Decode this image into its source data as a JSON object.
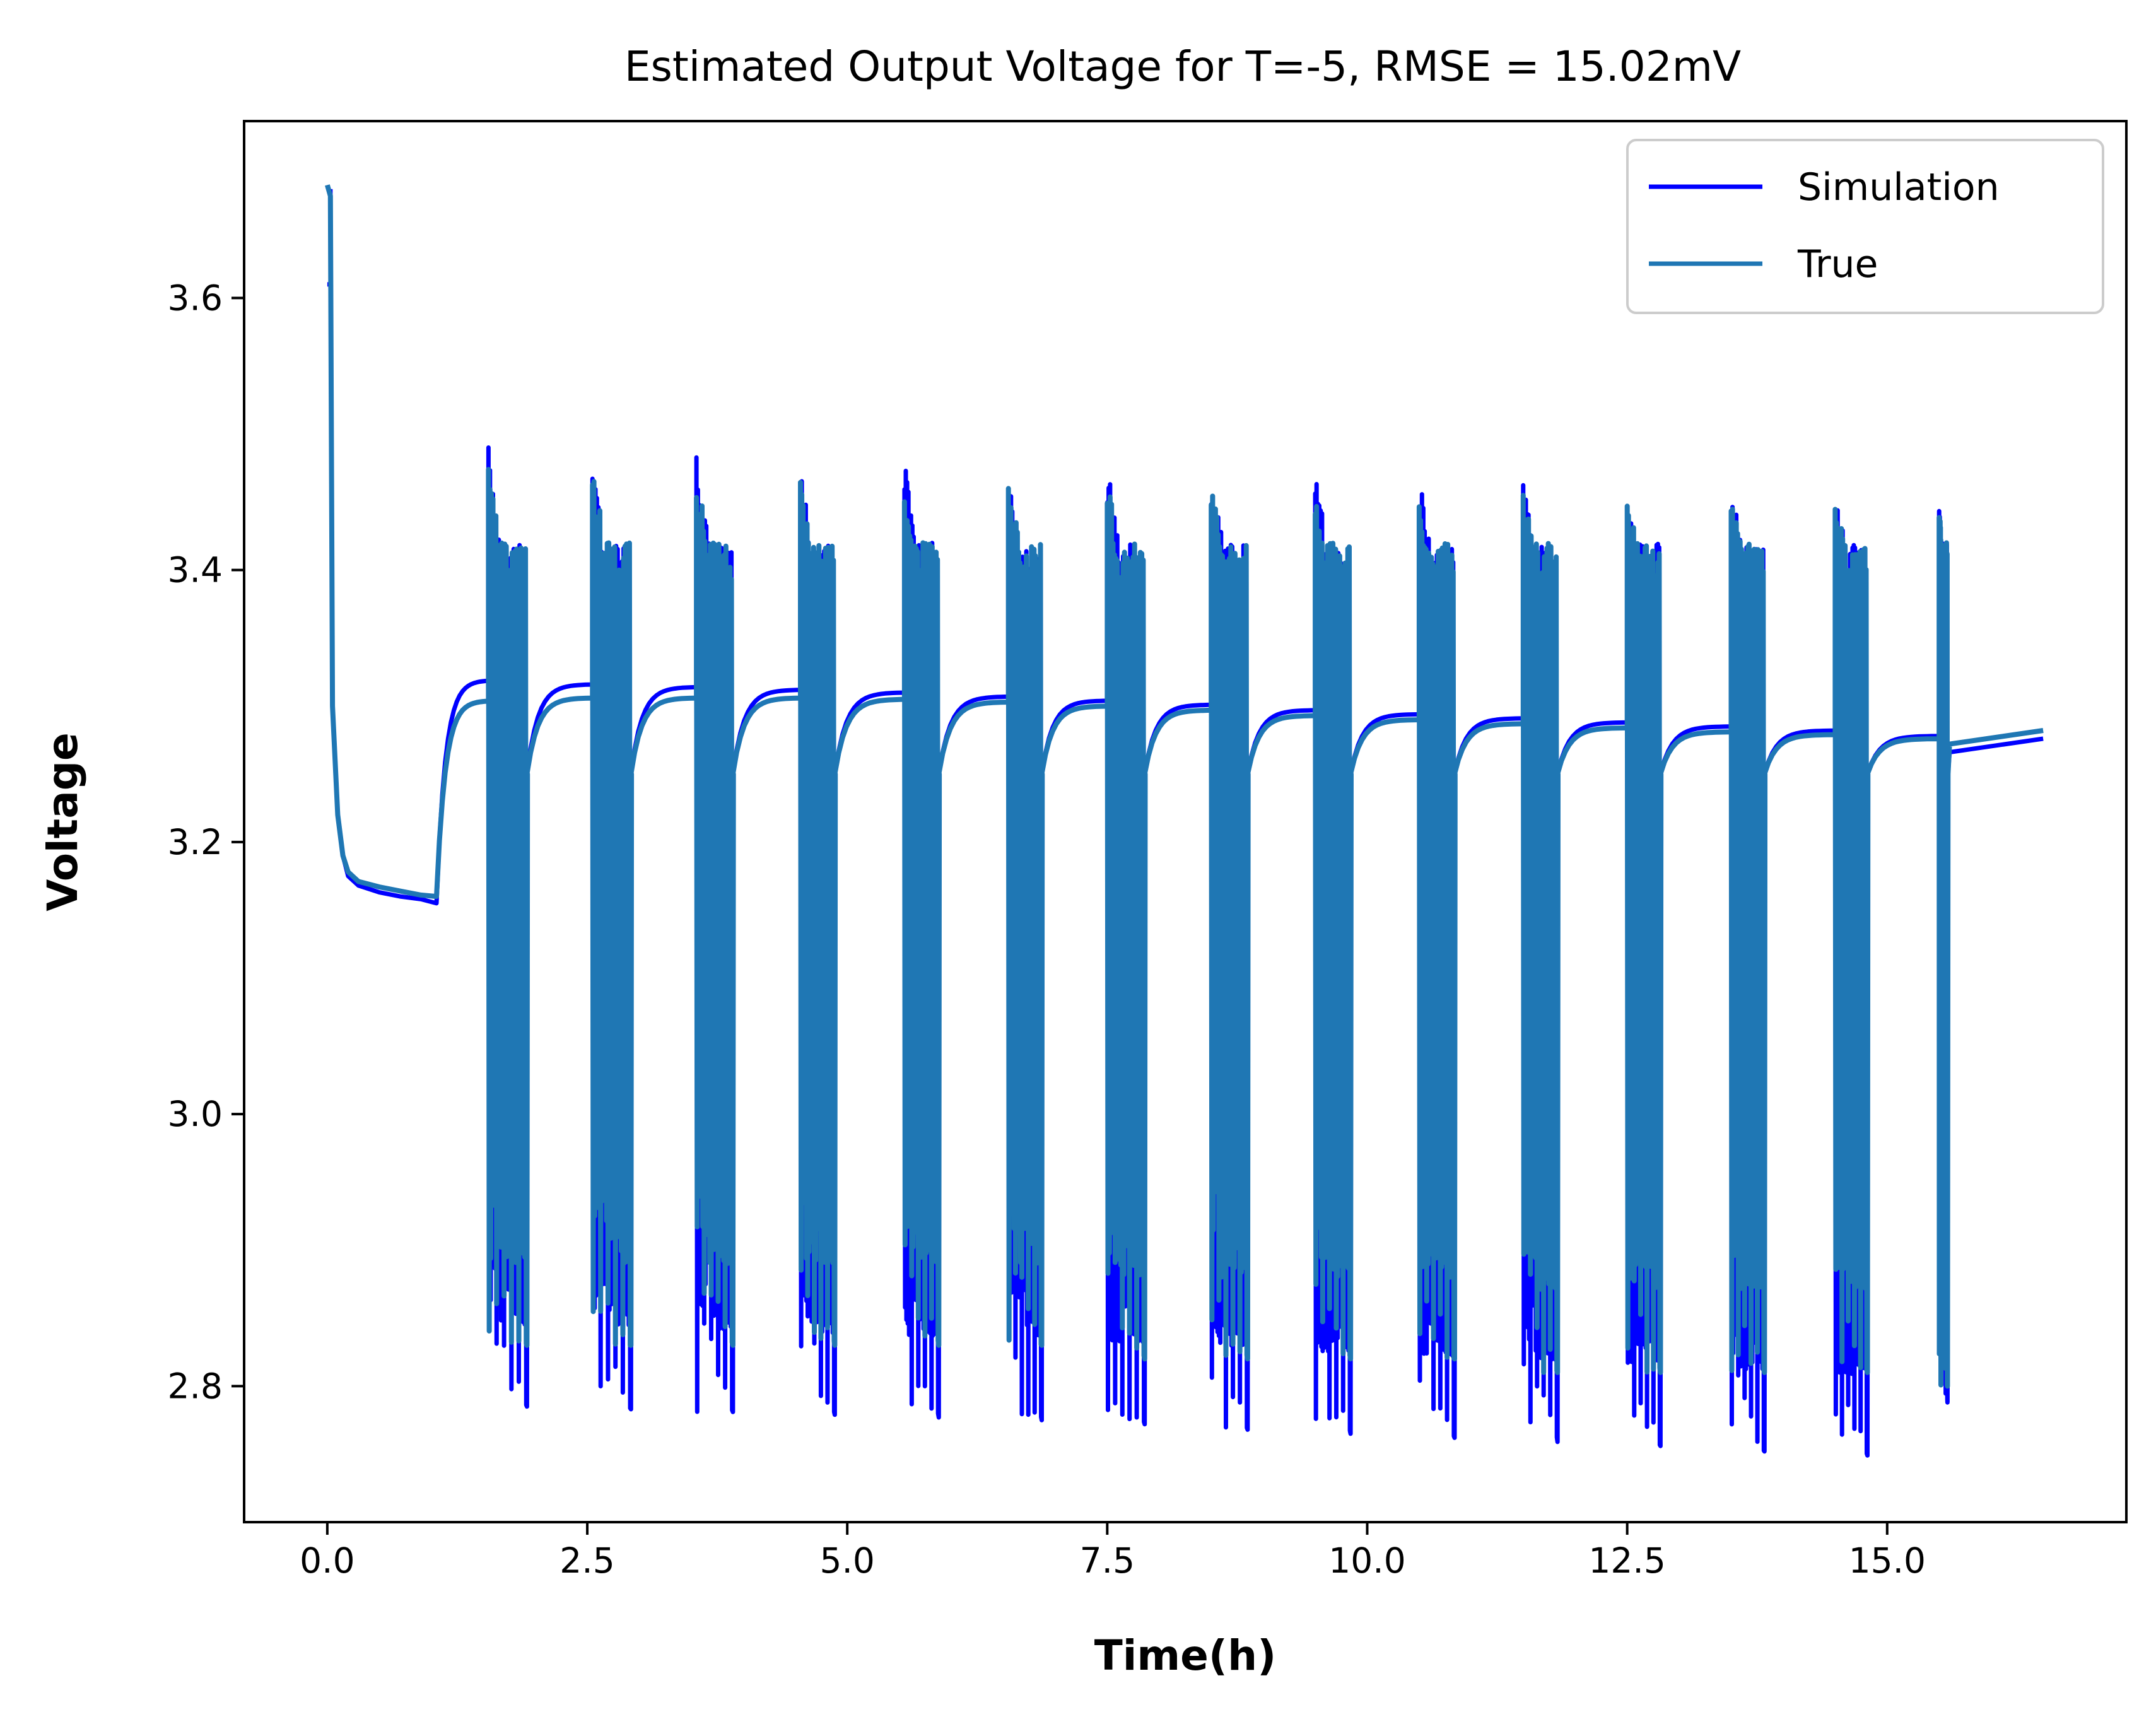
{
  "chart_data": {
    "type": "line",
    "title": "Estimated Output Voltage for T=-5, RMSE = 15.02mV",
    "xlabel": "Time(h)",
    "ylabel": "Voltage",
    "xlim": [
      -0.8,
      17.3
    ],
    "ylim": [
      2.7,
      3.73
    ],
    "xticks": [
      0.0,
      2.5,
      5.0,
      7.5,
      10.0,
      12.5,
      15.0
    ],
    "xtick_labels": [
      "0.0",
      "2.5",
      "5.0",
      "7.5",
      "10.0",
      "12.5",
      "15.0"
    ],
    "yticks": [
      2.8,
      3.0,
      3.2,
      3.4,
      3.6
    ],
    "ytick_labels": [
      "2.8",
      "3.0",
      "3.2",
      "3.4",
      "3.6"
    ],
    "grid": false,
    "legend_position": "top-right",
    "series": [
      {
        "name": "Simulation",
        "color": "#0000ff",
        "initial": {
          "x": [
            0.0,
            0.02,
            0.03
          ],
          "y": [
            3.61,
            3.61,
            3.61
          ]
        },
        "rest_phase": {
          "x": [
            0.03,
            0.05,
            0.1,
            0.15,
            0.2,
            0.3,
            0.5,
            0.7,
            0.9,
            1.05
          ],
          "y": [
            3.68,
            3.3,
            3.22,
            3.19,
            3.175,
            3.168,
            3.163,
            3.16,
            3.158,
            3.155
          ]
        },
        "pulse_start_hours": [
          1.55,
          2.55,
          3.55,
          4.55,
          5.55,
          6.55,
          7.5,
          8.5,
          9.5,
          10.5,
          11.5,
          12.5,
          13.5,
          14.5,
          15.5
        ],
        "pulse_end_hours": [
          1.92,
          2.92,
          3.9,
          4.88,
          5.88,
          6.87,
          7.86,
          8.85,
          9.84,
          10.84,
          11.83,
          12.82,
          13.82,
          14.81,
          15.58
        ],
        "pulse_peak_v": [
          3.49,
          3.487,
          3.485,
          3.483,
          3.481,
          3.478,
          3.476,
          3.473,
          3.471,
          3.468,
          3.465,
          3.462,
          3.459,
          3.456,
          3.454
        ],
        "pulse_min_v": [
          2.785,
          2.783,
          2.781,
          2.779,
          2.777,
          2.775,
          2.772,
          2.768,
          2.765,
          2.762,
          2.759,
          2.756,
          2.752,
          2.749,
          2.788
        ],
        "plateau_v": [
          3.319,
          3.316,
          3.314,
          3.312,
          3.31,
          3.307,
          3.304,
          3.301,
          3.297,
          3.294,
          3.291,
          3.288,
          3.285,
          3.282,
          3.278
        ],
        "end_x": 16.5,
        "end_y": 3.276
      },
      {
        "name": "True",
        "color": "#1f77b4",
        "rest_phase": {
          "x": [
            0.0,
            0.03,
            0.05,
            0.1,
            0.15,
            0.2,
            0.3,
            0.5,
            0.7,
            0.9,
            1.05
          ],
          "y": [
            3.683,
            3.675,
            3.3,
            3.22,
            3.19,
            3.178,
            3.171,
            3.167,
            3.164,
            3.161,
            3.16
          ]
        },
        "pulse_start_hours": [
          1.55,
          2.55,
          3.55,
          4.55,
          5.55,
          6.55,
          7.5,
          8.5,
          9.5,
          10.5,
          11.5,
          12.5,
          13.5,
          14.5,
          15.5
        ],
        "pulse_end_hours": [
          1.92,
          2.92,
          3.9,
          4.88,
          5.88,
          6.87,
          7.86,
          8.85,
          9.84,
          10.84,
          11.83,
          12.82,
          13.82,
          14.81,
          15.58
        ],
        "pulse_peak_v": [
          3.478,
          3.476,
          3.474,
          3.472,
          3.47,
          3.468,
          3.466,
          3.463,
          3.461,
          3.458,
          3.455,
          3.452,
          3.45,
          3.447,
          3.445
        ],
        "pulse_min_v": [
          2.83,
          2.83,
          2.83,
          2.83,
          2.83,
          2.83,
          2.82,
          2.82,
          2.82,
          2.82,
          2.81,
          2.81,
          2.81,
          2.81,
          2.8
        ],
        "plateau_v": [
          3.304,
          3.306,
          3.306,
          3.306,
          3.305,
          3.303,
          3.3,
          3.297,
          3.293,
          3.29,
          3.287,
          3.284,
          3.281,
          3.279,
          3.276
        ],
        "end_x": 16.5,
        "end_y": 3.282
      }
    ]
  }
}
